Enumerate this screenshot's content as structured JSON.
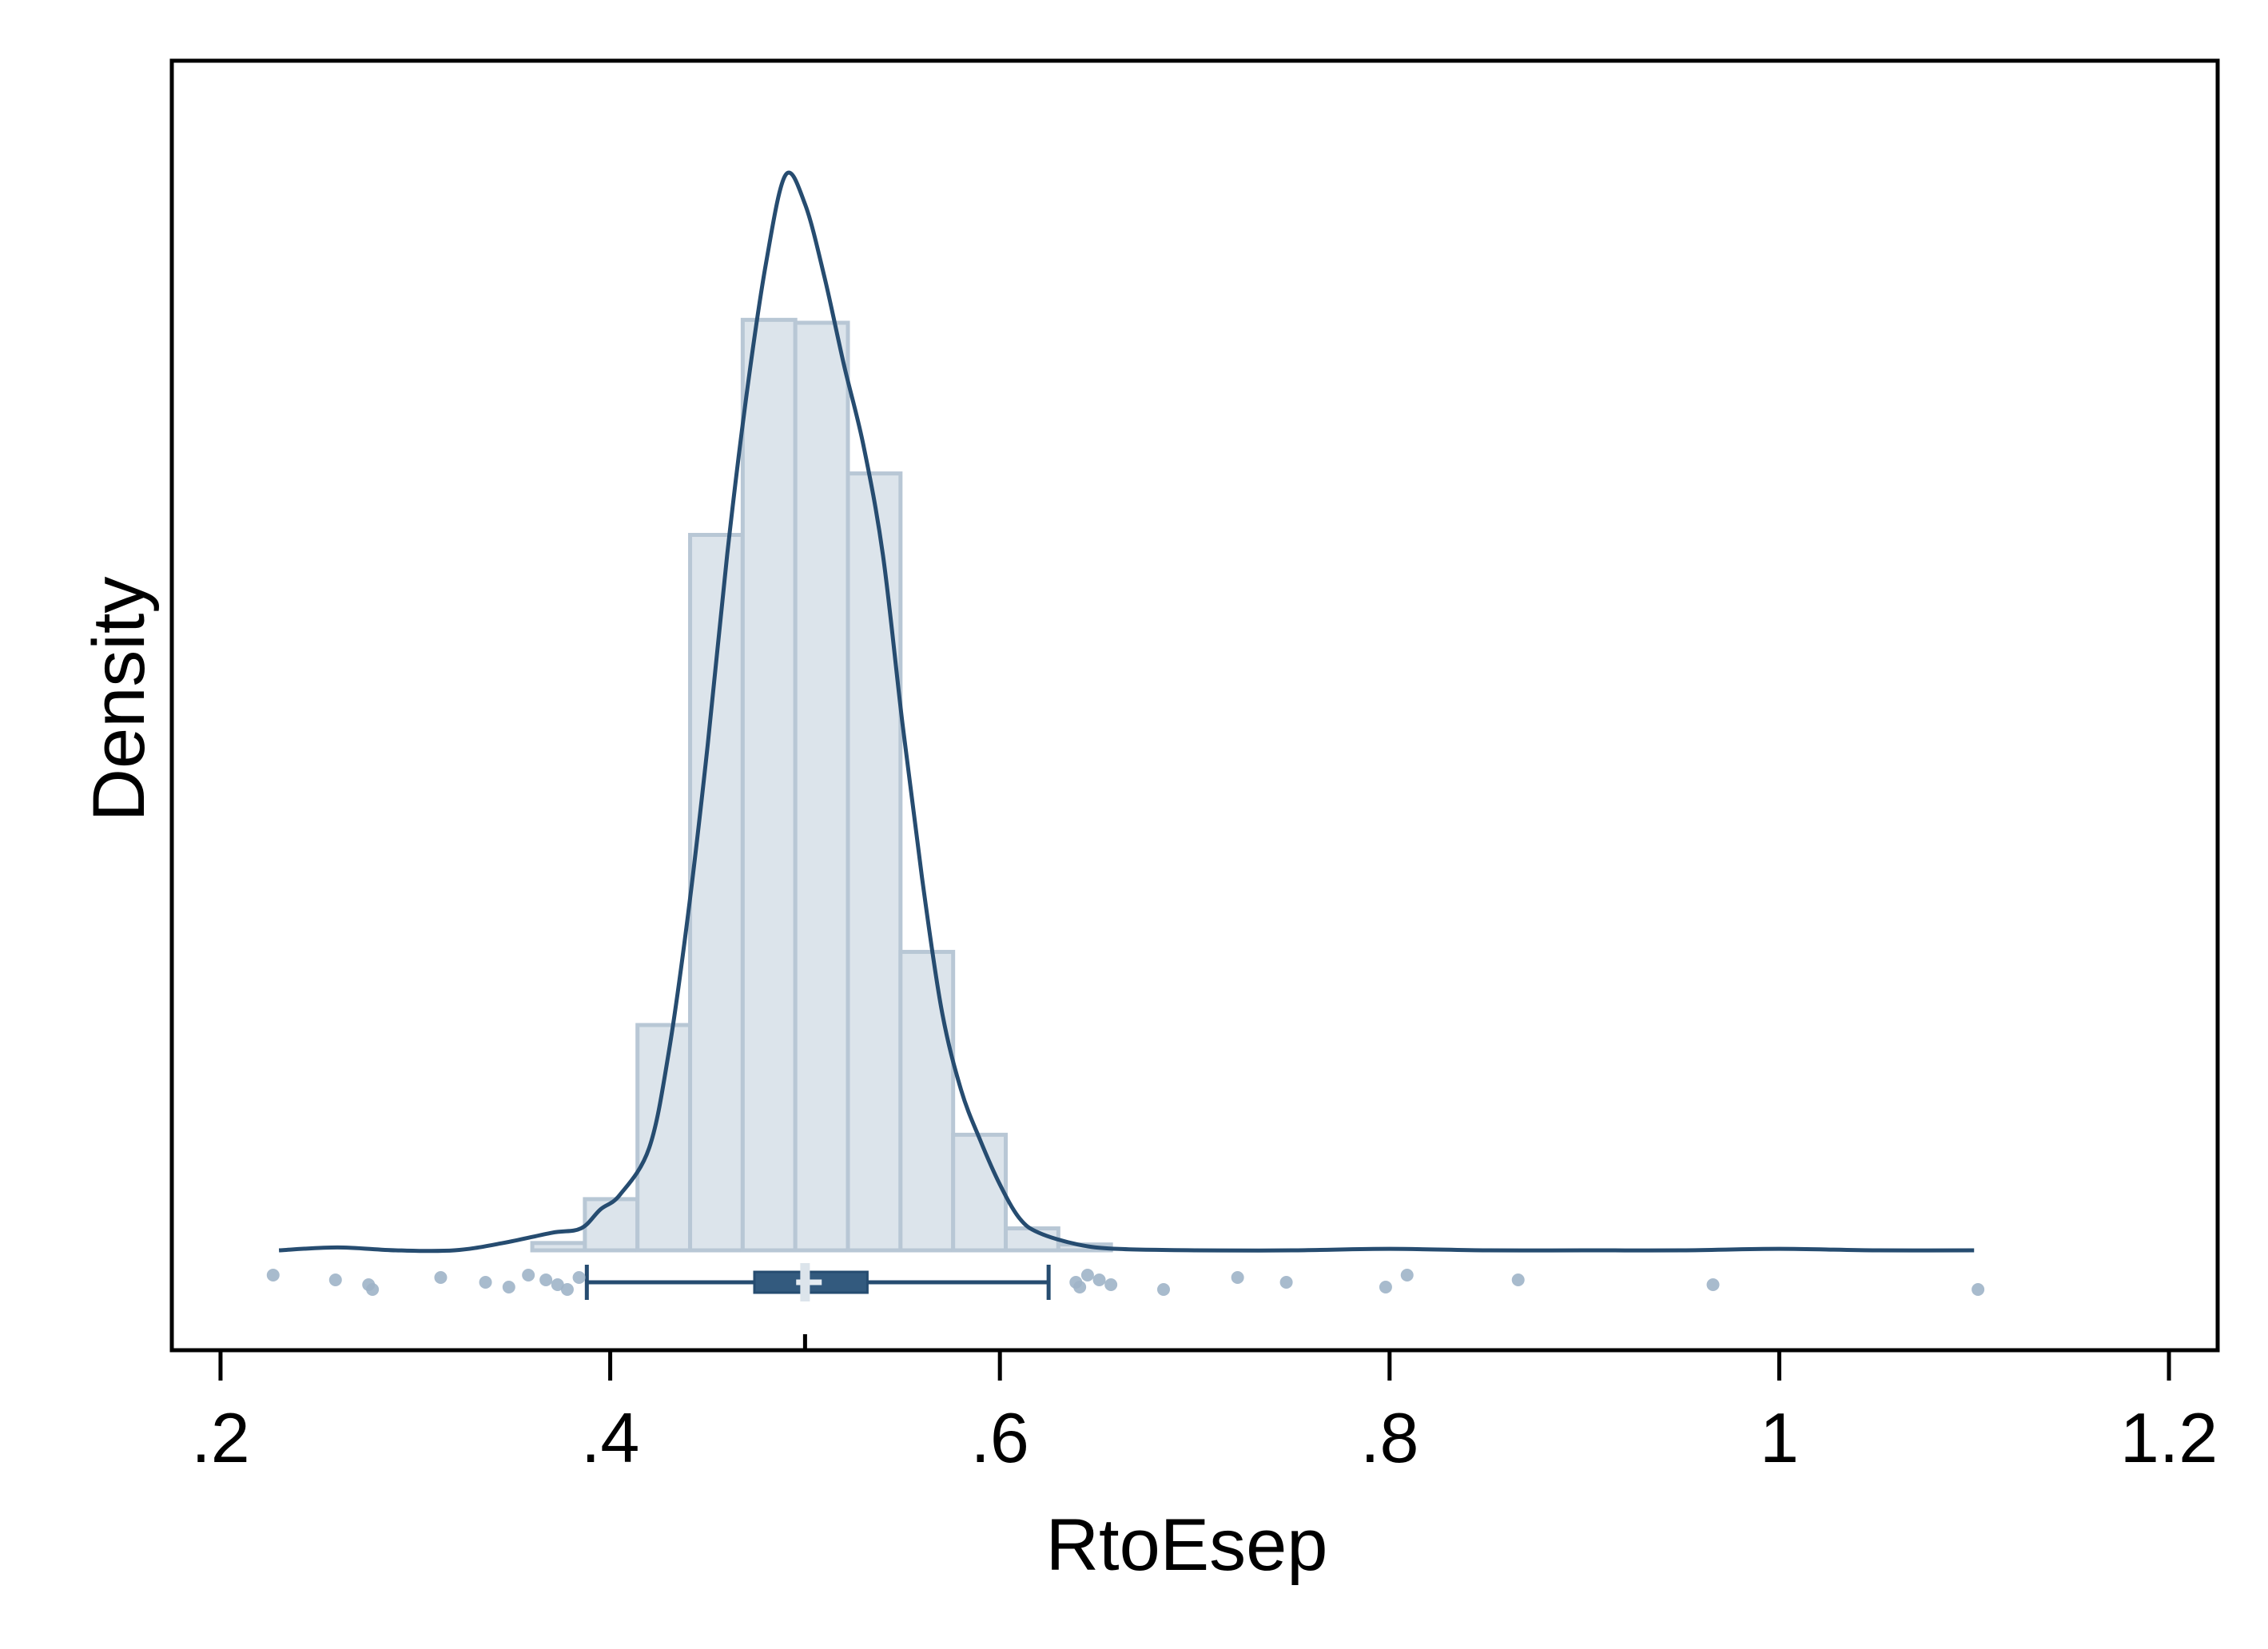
{
  "chart_data": {
    "type": "histogram",
    "xlabel": "RtoEsep",
    "ylabel": "Density",
    "x_ticks": [
      0.2,
      0.4,
      0.6,
      0.8,
      1.0,
      1.2
    ],
    "x_tick_labels": [
      ".2",
      ".4",
      ".6",
      ".8",
      "1",
      "1.2"
    ],
    "xlim": [
      0.175,
      1.225
    ],
    "ylim": [
      0,
      8.0
    ],
    "y_ticks_shown": false,
    "grid": false,
    "histogram": {
      "bin_width": 0.027,
      "bins": [
        {
          "start": 0.36,
          "density": 0.05
        },
        {
          "start": 0.387,
          "density": 0.35
        },
        {
          "start": 0.414,
          "density": 1.54
        },
        {
          "start": 0.441,
          "density": 4.89
        },
        {
          "start": 0.468,
          "density": 6.36
        },
        {
          "start": 0.495,
          "density": 6.34
        },
        {
          "start": 0.522,
          "density": 5.31
        },
        {
          "start": 0.549,
          "density": 2.04
        },
        {
          "start": 0.576,
          "density": 0.79
        },
        {
          "start": 0.603,
          "density": 0.15
        },
        {
          "start": 0.63,
          "density": 0.04
        }
      ]
    },
    "kde_curve": {
      "x": [
        0.23,
        0.26,
        0.29,
        0.32,
        0.345,
        0.37,
        0.385,
        0.395,
        0.405,
        0.42,
        0.43,
        0.44,
        0.45,
        0.46,
        0.47,
        0.48,
        0.49,
        0.5,
        0.51,
        0.52,
        0.53,
        0.54,
        0.55,
        0.56,
        0.57,
        0.58,
        0.59,
        0.6,
        0.61,
        0.62,
        0.64,
        0.66,
        0.7,
        0.75,
        0.8,
        0.85,
        0.9,
        0.95,
        1.0,
        1.05,
        1.1
      ],
      "y": [
        0.0,
        0.02,
        0.0,
        0.0,
        0.05,
        0.12,
        0.15,
        0.28,
        0.38,
        0.7,
        1.35,
        2.3,
        3.45,
        4.75,
        5.85,
        6.75,
        7.35,
        7.15,
        6.65,
        6.05,
        5.5,
        4.75,
        3.6,
        2.55,
        1.65,
        1.1,
        0.75,
        0.45,
        0.22,
        0.12,
        0.04,
        0.01,
        0.0,
        0.0,
        0.01,
        0.0,
        0.0,
        0.0,
        0.01,
        0.0,
        0.0
      ]
    },
    "boxplot": {
      "whisker_low": 0.388,
      "q1": 0.474,
      "median": 0.502,
      "q3": 0.532,
      "whisker_high": 0.625,
      "mean_tick": 0.5
    },
    "outlier_points": [
      0.227,
      0.259,
      0.276,
      0.278,
      0.313,
      0.336,
      0.348,
      0.358,
      0.367,
      0.373,
      0.378,
      0.384,
      0.639,
      0.641,
      0.645,
      0.651,
      0.657,
      0.684,
      0.722,
      0.747,
      0.798,
      0.809,
      0.866,
      0.966,
      1.102
    ],
    "colors": {
      "bar_fill": "#dce4eb",
      "bar_stroke": "#b8c7d5",
      "kde_line": "#264c70",
      "box_fill": "#335a7e",
      "whisker": "#264c70",
      "outlier": "#9fb4c8"
    }
  }
}
